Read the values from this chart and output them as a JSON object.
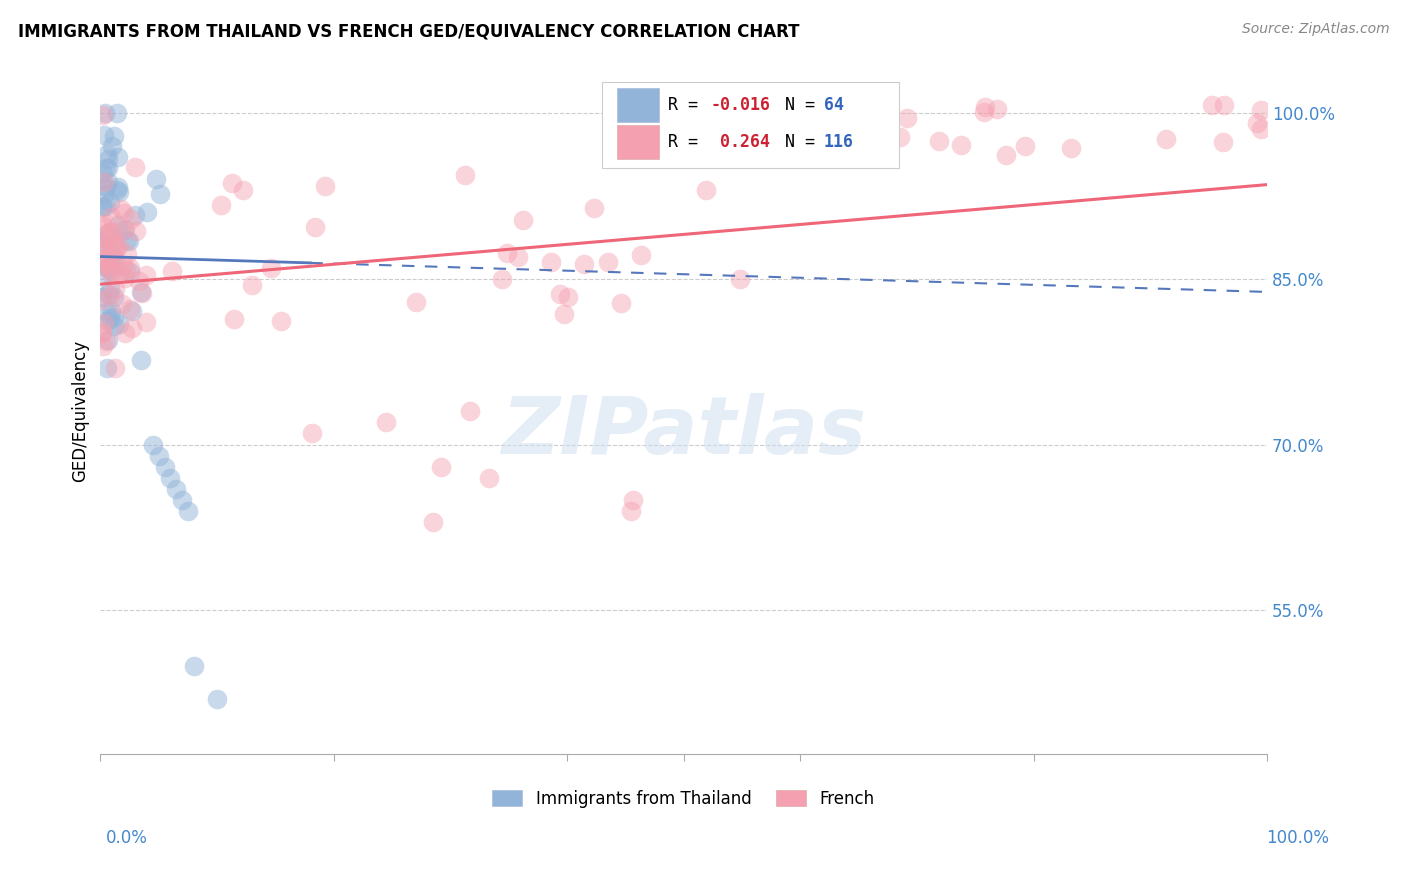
{
  "title": "IMMIGRANTS FROM THAILAND VS FRENCH GED/EQUIVALENCY CORRELATION CHART",
  "source": "Source: ZipAtlas.com",
  "ylabel": "GED/Equivalency",
  "legend_label1": "Immigrants from Thailand",
  "legend_label2": "French",
  "R1": "-0.016",
  "N1": "64",
  "R2": "0.264",
  "N2": "116",
  "ytick_labels": [
    "100.0%",
    "85.0%",
    "70.0%",
    "55.0%"
  ],
  "ytick_values": [
    1.0,
    0.85,
    0.7,
    0.55
  ],
  "xlim": [
    0.0,
    1.0
  ],
  "ylim": [
    0.42,
    1.04
  ],
  "blue_color": "#92B4D9",
  "pink_color": "#F4A0B0",
  "blue_line_color": "#5577BB",
  "pink_line_color": "#EE6677",
  "watermark": "ZIPatlas",
  "blue_line_x0": 0.0,
  "blue_line_x_solid_end": 0.18,
  "blue_line_x1": 1.0,
  "blue_line_y0": 0.87,
  "blue_line_y1": 0.838,
  "pink_line_x0": 0.0,
  "pink_line_x1": 1.0,
  "pink_line_y0": 0.845,
  "pink_line_y1": 0.935
}
